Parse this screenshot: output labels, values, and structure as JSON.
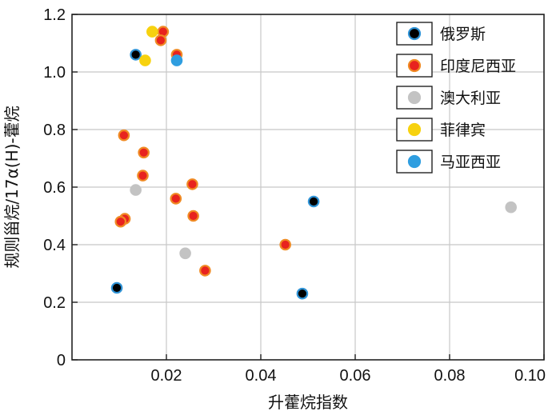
{
  "chart_data": {
    "type": "scatter",
    "title": "",
    "xlabel": "升藿烷指数",
    "ylabel": "规则甾烷/17α(H)-藿烷",
    "xlim": [
      0.0,
      0.1
    ],
    "ylim": [
      0,
      1.2
    ],
    "grid": true,
    "legend_position": "top-right",
    "x_ticks": [
      0.02,
      0.04,
      0.06,
      0.08,
      0.1
    ],
    "x_tick_labels": [
      "0.02",
      "0.04",
      "0.06",
      "0.08",
      "0.10"
    ],
    "y_ticks": [
      0,
      0.2,
      0.4,
      0.6,
      0.8,
      1.0,
      1.2
    ],
    "y_tick_labels": [
      "0",
      "0.2",
      "0.4",
      "0.6",
      "0.8",
      "1.0",
      "1.2"
    ],
    "series": [
      {
        "name": "俄罗斯",
        "fill": "#000000",
        "stroke": "#2f93d6",
        "points": [
          [
            0.0135,
            1.06
          ],
          [
            0.0095,
            0.25
          ],
          [
            0.0512,
            0.55
          ],
          [
            0.0488,
            0.23
          ]
        ]
      },
      {
        "name": "印度尼西亚",
        "fill": "#e8231f",
        "stroke": "#f08a24",
        "points": [
          [
            0.0193,
            1.14
          ],
          [
            0.0188,
            1.11
          ],
          [
            0.0222,
            1.06
          ],
          [
            0.011,
            0.78
          ],
          [
            0.0152,
            0.72
          ],
          [
            0.015,
            0.64
          ],
          [
            0.0255,
            0.61
          ],
          [
            0.022,
            0.56
          ],
          [
            0.0112,
            0.49
          ],
          [
            0.0103,
            0.48
          ],
          [
            0.0257,
            0.5
          ],
          [
            0.0452,
            0.4
          ],
          [
            0.0282,
            0.31
          ]
        ]
      },
      {
        "name": "澳大利亚",
        "fill": "#c3c3c3",
        "stroke": "#c3c3c3",
        "points": [
          [
            0.0135,
            0.59
          ],
          [
            0.024,
            0.37
          ],
          [
            0.093,
            0.53
          ]
        ]
      },
      {
        "name": "菲律宾",
        "fill": "#f7d20f",
        "stroke": "#f7d20f",
        "points": [
          [
            0.017,
            1.14
          ],
          [
            0.0155,
            1.04
          ]
        ]
      },
      {
        "name": "马亚西亚",
        "fill": "#2f9ee0",
        "stroke": "#2f9ee0",
        "points": [
          [
            0.0222,
            1.04
          ]
        ]
      }
    ]
  }
}
